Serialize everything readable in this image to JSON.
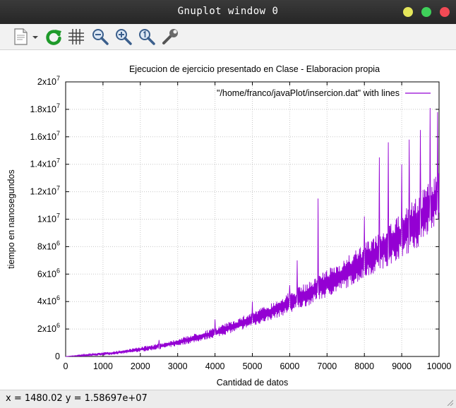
{
  "window": {
    "title": "Gnuplot window 0",
    "buttons": {
      "minimize_color": "#e4e65a",
      "maximize_color": "#3fd15a",
      "close_color": "#f24a55"
    }
  },
  "toolbar": {
    "icons": [
      "copy-clipboard-icon",
      "dropdown-chevron-icon",
      "replot-icon",
      "grid-icon",
      "zoom-out-icon",
      "zoom-in-icon",
      "unzoom-icon",
      "settings-wrench-icon"
    ]
  },
  "status": {
    "text": "x = 1480.02 y = 1.58697e+07"
  },
  "chart_data": {
    "type": "line",
    "title": "Ejecucion de ejercicio presentado en Clase - Elaboracion propia",
    "xlabel": "Cantidad de datos",
    "ylabel": "tiempo en nanosegundos",
    "xlim": [
      0,
      10000
    ],
    "ylim": [
      0,
      20000000
    ],
    "xticks": [
      "0",
      "1000",
      "2000",
      "3000",
      "4000",
      "5000",
      "6000",
      "7000",
      "8000",
      "9000",
      "10000"
    ],
    "yticks": [
      {
        "value": 0,
        "base": "0",
        "exp": ""
      },
      {
        "value": 2000000,
        "base": "2x10",
        "exp": "6"
      },
      {
        "value": 4000000,
        "base": "4x10",
        "exp": "6"
      },
      {
        "value": 6000000,
        "base": "6x10",
        "exp": "6"
      },
      {
        "value": 8000000,
        "base": "8x10",
        "exp": "6"
      },
      {
        "value": 10000000,
        "base": "1x10",
        "exp": "7"
      },
      {
        "value": 12000000,
        "base": "1.2x10",
        "exp": "7"
      },
      {
        "value": 14000000,
        "base": "1.4x10",
        "exp": "7"
      },
      {
        "value": 16000000,
        "base": "1.6x10",
        "exp": "7"
      },
      {
        "value": 18000000,
        "base": "1.8x10",
        "exp": "7"
      },
      {
        "value": 20000000,
        "base": "2x10",
        "exp": "7"
      }
    ],
    "grid": true,
    "legend": "top-right",
    "series": [
      {
        "name": "\"/home/franco/javaPlot/insercion.dat\" with lines",
        "color": "#9400d3",
        "x": [
          0,
          500,
          1000,
          1500,
          2000,
          2500,
          3000,
          3500,
          4000,
          4500,
          5000,
          5500,
          6000,
          6500,
          7000,
          7500,
          8000,
          8500,
          9000,
          9500,
          10000
        ],
        "lower": [
          0,
          20000,
          80000,
          180000,
          330000,
          520000,
          760000,
          1050000,
          1380000,
          1750000,
          2180000,
          2650000,
          3150000,
          3700000,
          4300000,
          4950000,
          5650000,
          6400000,
          7200000,
          8050000,
          9950000
        ],
        "upper": [
          0,
          150000,
          300000,
          450000,
          700000,
          950000,
          1300000,
          1700000,
          2100000,
          2650000,
          3250000,
          3900000,
          4700000,
          5450000,
          6300000,
          7200000,
          8200000,
          9300000,
          10400000,
          12000000,
          13500000
        ],
        "spikes": [
          {
            "x": 2500,
            "y": 1200000
          },
          {
            "x": 4000,
            "y": 2700000
          },
          {
            "x": 5000,
            "y": 4000000
          },
          {
            "x": 6000,
            "y": 5200000
          },
          {
            "x": 6200,
            "y": 7000000
          },
          {
            "x": 6760,
            "y": 11500000
          },
          {
            "x": 8000,
            "y": 10200000
          },
          {
            "x": 8400,
            "y": 14500000
          },
          {
            "x": 8640,
            "y": 15600000
          },
          {
            "x": 9000,
            "y": 14000000
          },
          {
            "x": 9200,
            "y": 15800000
          },
          {
            "x": 9500,
            "y": 16500000
          },
          {
            "x": 9760,
            "y": 18100000
          },
          {
            "x": 9960,
            "y": 17800000
          }
        ]
      }
    ]
  }
}
